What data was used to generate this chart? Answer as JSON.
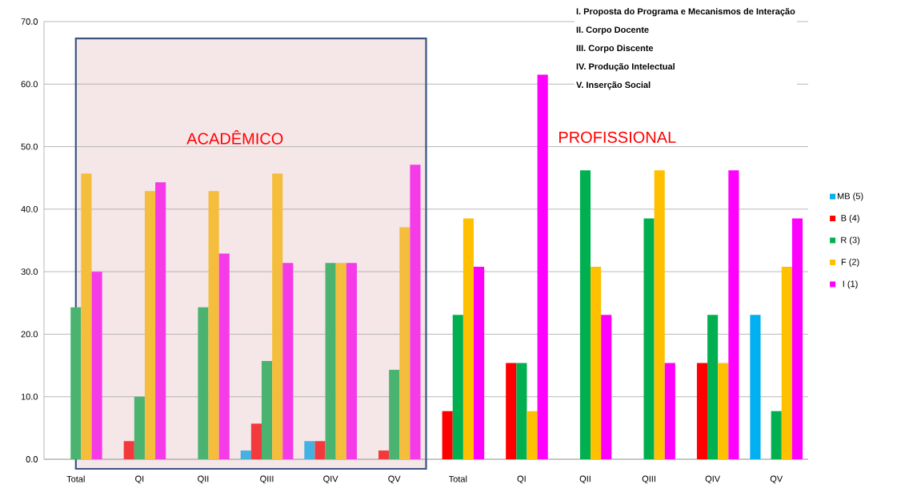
{
  "chart_data": {
    "type": "bar",
    "categories": [
      "Total",
      "QI",
      "QII",
      "QIII",
      "QIV",
      "QV",
      "Total",
      "QI",
      "QII",
      "QIII",
      "QIV",
      "QV"
    ],
    "series": [
      {
        "name": "MB (5)",
        "color": "#00b0f0",
        "colors": [
          "#45b1e0",
          "#45b1e0",
          "#45b1e0",
          "#45b1e0",
          "#45b1e0",
          "#45b1e0",
          "#00b0f0",
          "#00b0f0",
          "#00b0f0",
          "#00b0f0",
          "#00b0f0",
          "#00b0f0"
        ],
        "values": [
          0,
          0,
          0,
          1.4,
          2.9,
          0,
          0,
          0,
          0,
          0,
          0,
          23.1
        ]
      },
      {
        "name": "B (4)",
        "color": "#ff0000",
        "colors": [
          "#f23a3e",
          "#f23a3e",
          "#f23a3e",
          "#f23a3e",
          "#f23a3e",
          "#f23a3e",
          "#ff0000",
          "#ff0000",
          "#ff0000",
          "#ff0000",
          "#ff0000",
          "#ff0000"
        ],
        "values": [
          0,
          2.9,
          0,
          5.7,
          2.9,
          1.4,
          7.7,
          15.4,
          0,
          0,
          15.4,
          0
        ]
      },
      {
        "name": "R (3)",
        "color": "#00b050",
        "colors": [
          "#4ab370",
          "#4ab370",
          "#4ab370",
          "#4ab370",
          "#4ab370",
          "#4ab370",
          "#00b050",
          "#00b050",
          "#00b050",
          "#00b050",
          "#00b050",
          "#00b050"
        ],
        "values": [
          24.3,
          10.0,
          24.3,
          15.7,
          31.4,
          14.3,
          23.1,
          15.4,
          46.2,
          38.5,
          23.1,
          7.7
        ]
      },
      {
        "name": "F (2)",
        "color": "#ffc000",
        "colors": [
          "#f5bd3c",
          "#f5bd3c",
          "#f5bd3c",
          "#f5bd3c",
          "#f5bd3c",
          "#f5bd3c",
          "#ffc000",
          "#ffc000",
          "#ffc000",
          "#ffc000",
          "#ffc000",
          "#ffc000"
        ],
        "values": [
          45.7,
          42.9,
          42.9,
          45.7,
          31.4,
          37.1,
          38.5,
          7.7,
          30.8,
          46.2,
          15.4,
          30.8
        ]
      },
      {
        "name": "I (1)",
        "color": "#ff00ff",
        "colors": [
          "#f53ae8",
          "#f53ae8",
          "#f53ae8",
          "#f53ae8",
          "#f53ae8",
          "#f53ae8",
          "#ff00ff",
          "#ff00ff",
          "#ff00ff",
          "#ff00ff",
          "#ff00ff",
          "#ff00ff"
        ],
        "values": [
          30.0,
          44.3,
          32.9,
          31.4,
          31.4,
          47.1,
          30.8,
          61.5,
          23.1,
          15.4,
          46.2,
          38.5
        ]
      }
    ],
    "ylim": [
      0,
      70
    ],
    "yticks": [
      {
        "value": 0,
        "label": "0.0"
      },
      {
        "value": 10,
        "label": "10.0"
      },
      {
        "value": 20,
        "label": "20.0"
      },
      {
        "value": 30,
        "label": "30.0"
      },
      {
        "value": 40,
        "label": "40.0"
      },
      {
        "value": 50,
        "label": "50.0"
      },
      {
        "value": 60,
        "label": "60.0"
      },
      {
        "value": 70,
        "label": "70.0"
      }
    ],
    "grid": "y",
    "legend": "right",
    "bands": [
      {
        "axis": "x",
        "from": "Total",
        "to": "QV",
        "label": "ACADÊMICO",
        "color": "#f5e6e8"
      }
    ],
    "annotations": [
      "I. Proposta do Programa e Mecanismos de Interação",
      "II. Corpo Docente",
      "III. Corpo Discente",
      "IV. Produção Intelectual",
      "V. Inserção Social",
      "PROFISSIONAL"
    ]
  }
}
